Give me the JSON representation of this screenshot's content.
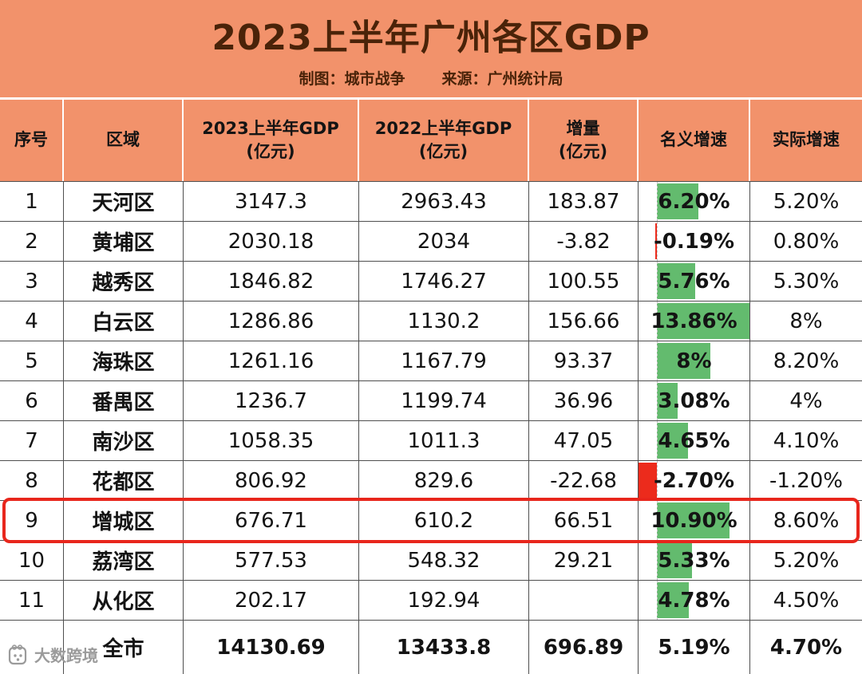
{
  "header": {
    "title": "2023上半年广州各区GDP",
    "credit": "制图：城市战争",
    "source": "来源：广州统计局"
  },
  "chart_data": {
    "type": "table",
    "title": "2023上半年广州各区GDP",
    "columns": [
      {
        "line1": "序号",
        "line2": ""
      },
      {
        "line1": "区域",
        "line2": ""
      },
      {
        "line1": "2023上半年GDP",
        "line2": "(亿元)"
      },
      {
        "line1": "2022上半年GDP",
        "line2": "(亿元)"
      },
      {
        "line1": "增量",
        "line2": "(亿元)"
      },
      {
        "line1": "名义增速",
        "line2": ""
      },
      {
        "line1": "实际增速",
        "line2": ""
      }
    ],
    "rows": [
      {
        "no": "1",
        "district": "天河区",
        "gdp2023": "3147.3",
        "gdp2022": "2963.43",
        "delta": "183.87",
        "nominal": "6.20%",
        "nominal_value": 6.2,
        "real": "5.20%",
        "highlight": false
      },
      {
        "no": "2",
        "district": "黄埔区",
        "gdp2023": "2030.18",
        "gdp2022": "2034",
        "delta": "-3.82",
        "nominal": "-0.19%",
        "nominal_value": -0.19,
        "real": "0.80%",
        "highlight": false
      },
      {
        "no": "3",
        "district": "越秀区",
        "gdp2023": "1846.82",
        "gdp2022": "1746.27",
        "delta": "100.55",
        "nominal": "5.76%",
        "nominal_value": 5.76,
        "real": "5.30%",
        "highlight": false
      },
      {
        "no": "4",
        "district": "白云区",
        "gdp2023": "1286.86",
        "gdp2022": "1130.2",
        "delta": "156.66",
        "nominal": "13.86%",
        "nominal_value": 13.86,
        "real": "8%",
        "highlight": false
      },
      {
        "no": "5",
        "district": "海珠区",
        "gdp2023": "1261.16",
        "gdp2022": "1167.79",
        "delta": "93.37",
        "nominal": "8%",
        "nominal_value": 8,
        "real": "8.20%",
        "highlight": false
      },
      {
        "no": "6",
        "district": "番禺区",
        "gdp2023": "1236.7",
        "gdp2022": "1199.74",
        "delta": "36.96",
        "nominal": "3.08%",
        "nominal_value": 3.08,
        "real": "4%",
        "highlight": false
      },
      {
        "no": "7",
        "district": "南沙区",
        "gdp2023": "1058.35",
        "gdp2022": "1011.3",
        "delta": "47.05",
        "nominal": "4.65%",
        "nominal_value": 4.65,
        "real": "4.10%",
        "highlight": false
      },
      {
        "no": "8",
        "district": "花都区",
        "gdp2023": "806.92",
        "gdp2022": "829.6",
        "delta": "-22.68",
        "nominal": "-2.70%",
        "nominal_value": -2.7,
        "real": "-1.20%",
        "highlight": false
      },
      {
        "no": "9",
        "district": "增城区",
        "gdp2023": "676.71",
        "gdp2022": "610.2",
        "delta": "66.51",
        "nominal": "10.90%",
        "nominal_value": 10.9,
        "real": "8.60%",
        "highlight": true
      },
      {
        "no": "10",
        "district": "荔湾区",
        "gdp2023": "577.53",
        "gdp2022": "548.32",
        "delta": "29.21",
        "nominal": "5.33%",
        "nominal_value": 5.33,
        "real": "5.20%",
        "highlight": false
      },
      {
        "no": "11",
        "district": "从化区",
        "gdp2023": "202.17",
        "gdp2022": "192.94",
        "delta": "",
        "nominal": "4.78%",
        "nominal_value": 4.78,
        "real": "4.50%",
        "highlight": false
      }
    ],
    "total_row": {
      "no": "",
      "district": "全市",
      "gdp2023": "14130.69",
      "gdp2022": "13433.8",
      "delta": "696.89",
      "nominal": "5.19%",
      "real": "4.70%"
    },
    "databar": {
      "column": "名义增速",
      "min": -2.7,
      "max": 13.86,
      "positive_color": "#63BB6E",
      "negative_color": "#EC2B1C",
      "axis_color": "#c3c3c3",
      "axis_style": "dashed"
    }
  },
  "watermark": {
    "label": "大数跨境"
  },
  "colors": {
    "banner_bg": "#F2926B",
    "banner_text": "#4A2309",
    "grid_line": "#4f4f4f",
    "highlight_border": "#E8261C",
    "positive_bar": "#63BB6E",
    "negative_bar": "#EC2B1C"
  }
}
